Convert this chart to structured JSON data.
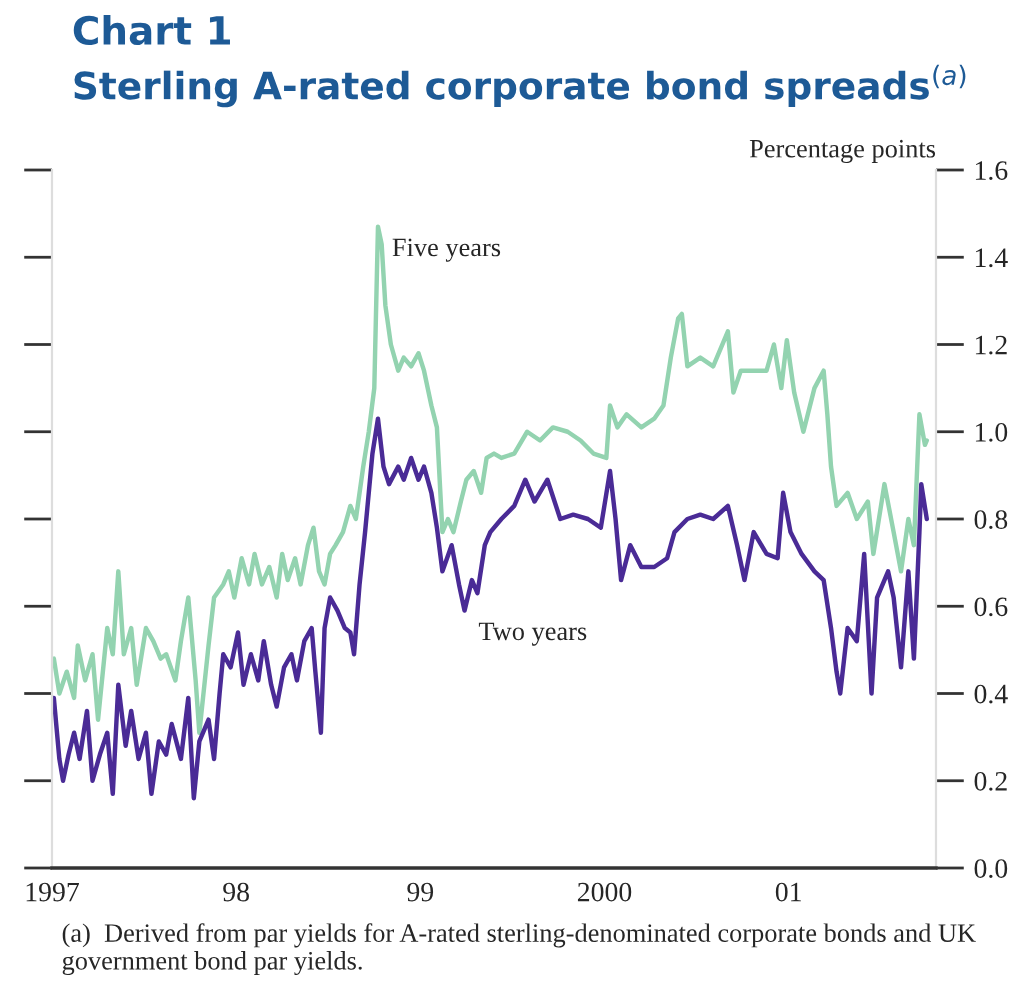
{
  "chart_data": {
    "type": "line",
    "title": "Chart 1",
    "subtitle": "Sterling A-rated corporate bond spreads$^{(a)}$",
    "ylabel": "Percentage points",
    "series": [
      {
        "color": "#93d3b0",
        "x": [
          1997.01,
          1997.04,
          1997.08,
          1997.12,
          1997.14,
          1997.18,
          1997.22,
          1997.25,
          1997.3,
          1997.33,
          1997.36,
          1997.39,
          1997.43,
          1997.46,
          1997.51,
          1997.55,
          1997.59,
          1997.62,
          1997.67,
          1997.7,
          1997.74,
          1997.78,
          1997.8,
          1997.85,
          1997.88,
          1997.93,
          1997.96,
          1997.99,
          1998.03,
          1998.07,
          1998.1,
          1998.14,
          1998.18,
          1998.22,
          1998.25,
          1998.28,
          1998.32,
          1998.35,
          1998.39,
          1998.42,
          1998.45,
          1998.48,
          1998.51,
          1998.54,
          1998.58,
          1998.62,
          1998.65,
          1998.69,
          1998.72,
          1998.75,
          1998.77,
          1998.79,
          1998.81,
          1998.84,
          1998.88,
          1998.91,
          1998.95,
          1998.99,
          1999.02,
          1999.06,
          1999.09,
          1999.12,
          1999.15,
          1999.18,
          1999.22,
          1999.25,
          1999.29,
          1999.33,
          1999.36,
          1999.4,
          1999.44,
          1999.51,
          1999.58,
          1999.65,
          1999.72,
          1999.8,
          1999.87,
          1999.94,
          2000.01,
          2000.03,
          2000.07,
          2000.12,
          2000.2,
          2000.27,
          2000.32,
          2000.36,
          2000.4,
          2000.42,
          2000.45,
          2000.52,
          2000.59,
          2000.67,
          2000.7,
          2000.74,
          2000.81,
          2000.88,
          2000.92,
          2000.96,
          2000.99,
          2001.03,
          2001.08,
          2001.14,
          2001.19,
          2001.21,
          2001.23,
          2001.26,
          2001.32,
          2001.37,
          2001.43,
          2001.46,
          2001.52,
          2001.57,
          2001.61,
          2001.65,
          2001.68,
          2001.71,
          2001.74,
          2001.75
        ],
        "values": [
          0.48,
          0.4,
          0.45,
          0.39,
          0.51,
          0.43,
          0.49,
          0.34,
          0.55,
          0.49,
          0.68,
          0.49,
          0.55,
          0.42,
          0.55,
          0.52,
          0.48,
          0.49,
          0.43,
          0.52,
          0.62,
          0.43,
          0.31,
          0.51,
          0.62,
          0.65,
          0.68,
          0.62,
          0.71,
          0.65,
          0.72,
          0.65,
          0.69,
          0.62,
          0.72,
          0.66,
          0.71,
          0.65,
          0.74,
          0.78,
          0.68,
          0.65,
          0.72,
          0.74,
          0.77,
          0.83,
          0.8,
          0.92,
          1.0,
          1.1,
          1.47,
          1.43,
          1.29,
          1.2,
          1.14,
          1.17,
          1.15,
          1.18,
          1.14,
          1.06,
          1.01,
          0.77,
          0.8,
          0.77,
          0.84,
          0.89,
          0.91,
          0.86,
          0.94,
          0.95,
          0.94,
          0.95,
          1.0,
          0.98,
          1.01,
          1.0,
          0.98,
          0.95,
          0.94,
          1.06,
          1.01,
          1.04,
          1.01,
          1.03,
          1.06,
          1.17,
          1.26,
          1.27,
          1.15,
          1.17,
          1.15,
          1.23,
          1.09,
          1.14,
          1.14,
          1.14,
          1.2,
          1.1,
          1.21,
          1.09,
          1.0,
          1.1,
          1.14,
          1.04,
          0.92,
          0.83,
          0.86,
          0.8,
          0.84,
          0.72,
          0.88,
          0.77,
          0.68,
          0.8,
          0.74,
          1.04,
          0.97,
          0.98
        ]
      },
      {
        "color": "#4a2b96",
        "x": [
          1997.01,
          1997.04,
          1997.06,
          1997.09,
          1997.12,
          1997.15,
          1997.19,
          1997.22,
          1997.26,
          1997.3,
          1997.33,
          1997.36,
          1997.4,
          1997.43,
          1997.47,
          1997.51,
          1997.54,
          1997.58,
          1997.62,
          1997.65,
          1997.7,
          1997.74,
          1997.77,
          1997.8,
          1997.85,
          1997.88,
          1997.91,
          1997.93,
          1997.97,
          1998.01,
          1998.04,
          1998.08,
          1998.12,
          1998.15,
          1998.19,
          1998.22,
          1998.26,
          1998.3,
          1998.33,
          1998.37,
          1998.41,
          1998.43,
          1998.46,
          1998.48,
          1998.51,
          1998.55,
          1998.59,
          1998.62,
          1998.64,
          1998.67,
          1998.7,
          1998.74,
          1998.77,
          1998.8,
          1998.83,
          1998.88,
          1998.91,
          1998.95,
          1998.99,
          1999.02,
          1999.06,
          1999.09,
          1999.12,
          1999.17,
          1999.21,
          1999.24,
          1999.28,
          1999.31,
          1999.35,
          1999.38,
          1999.44,
          1999.51,
          1999.57,
          1999.62,
          1999.69,
          1999.76,
          1999.83,
          1999.91,
          1999.98,
          2000.03,
          2000.06,
          2000.09,
          2000.14,
          2000.2,
          2000.27,
          2000.34,
          2000.38,
          2000.45,
          2000.52,
          2000.59,
          2000.67,
          2000.72,
          2000.76,
          2000.81,
          2000.88,
          2000.94,
          2000.97,
          2001.01,
          2001.07,
          2001.14,
          2001.19,
          2001.23,
          2001.26,
          2001.28,
          2001.32,
          2001.37,
          2001.41,
          2001.45,
          2001.48,
          2001.54,
          2001.57,
          2001.61,
          2001.65,
          2001.68,
          2001.71,
          2001.72,
          2001.75
        ],
        "values": [
          0.39,
          0.25,
          0.2,
          0.26,
          0.31,
          0.25,
          0.36,
          0.2,
          0.26,
          0.31,
          0.17,
          0.42,
          0.28,
          0.36,
          0.25,
          0.31,
          0.17,
          0.29,
          0.26,
          0.33,
          0.25,
          0.39,
          0.16,
          0.29,
          0.34,
          0.25,
          0.4,
          0.49,
          0.46,
          0.54,
          0.42,
          0.49,
          0.43,
          0.52,
          0.42,
          0.37,
          0.46,
          0.49,
          0.43,
          0.52,
          0.55,
          0.45,
          0.31,
          0.55,
          0.62,
          0.59,
          0.55,
          0.54,
          0.49,
          0.65,
          0.77,
          0.95,
          1.03,
          0.92,
          0.88,
          0.92,
          0.89,
          0.94,
          0.89,
          0.92,
          0.86,
          0.78,
          0.68,
          0.74,
          0.65,
          0.59,
          0.66,
          0.63,
          0.74,
          0.77,
          0.8,
          0.83,
          0.89,
          0.84,
          0.89,
          0.8,
          0.81,
          0.8,
          0.78,
          0.91,
          0.8,
          0.66,
          0.74,
          0.69,
          0.69,
          0.71,
          0.77,
          0.8,
          0.81,
          0.8,
          0.83,
          0.74,
          0.66,
          0.77,
          0.72,
          0.71,
          0.86,
          0.77,
          0.72,
          0.68,
          0.66,
          0.55,
          0.45,
          0.4,
          0.55,
          0.52,
          0.72,
          0.4,
          0.62,
          0.68,
          0.62,
          0.46,
          0.68,
          0.48,
          0.77,
          0.88,
          0.8
        ]
      }
    ],
    "xlim": [
      1997,
      2001.8
    ],
    "xticks": [
      {
        "value": 1997,
        "label": "1997"
      },
      {
        "value": 1998,
        "label": "98"
      },
      {
        "value": 1999,
        "label": "99"
      },
      {
        "value": 2000,
        "label": "2000"
      },
      {
        "value": 2001,
        "label": "01"
      }
    ],
    "ylim": [
      0,
      1.6
    ],
    "yticks": [
      {
        "value": 0,
        "label": "0.0"
      },
      {
        "value": 0.2,
        "label": "0.2"
      },
      {
        "value": 0.4,
        "label": "0.4"
      },
      {
        "value": 0.6,
        "label": "0.6"
      },
      {
        "value": 0.8,
        "label": "0.8"
      },
      {
        "value": 1.0,
        "label": "1.0"
      },
      {
        "value": 1.2,
        "label": "1.2"
      },
      {
        "value": 1.4,
        "label": "1.4"
      },
      {
        "value": 1.6,
        "label": "1.6"
      }
    ],
    "grid": false,
    "legend": false,
    "marker": "none",
    "line_style": "solid",
    "annotations": [
      {
        "text": "Five years",
        "x": 1998.77,
        "y": 1.47
      },
      {
        "text": "Two years",
        "x": 1999.24,
        "y": 0.59
      },
      "(a)  Derived from par yields for A-rated sterling-denominated corporate bonds and UK government bond par yields."
    ]
  }
}
